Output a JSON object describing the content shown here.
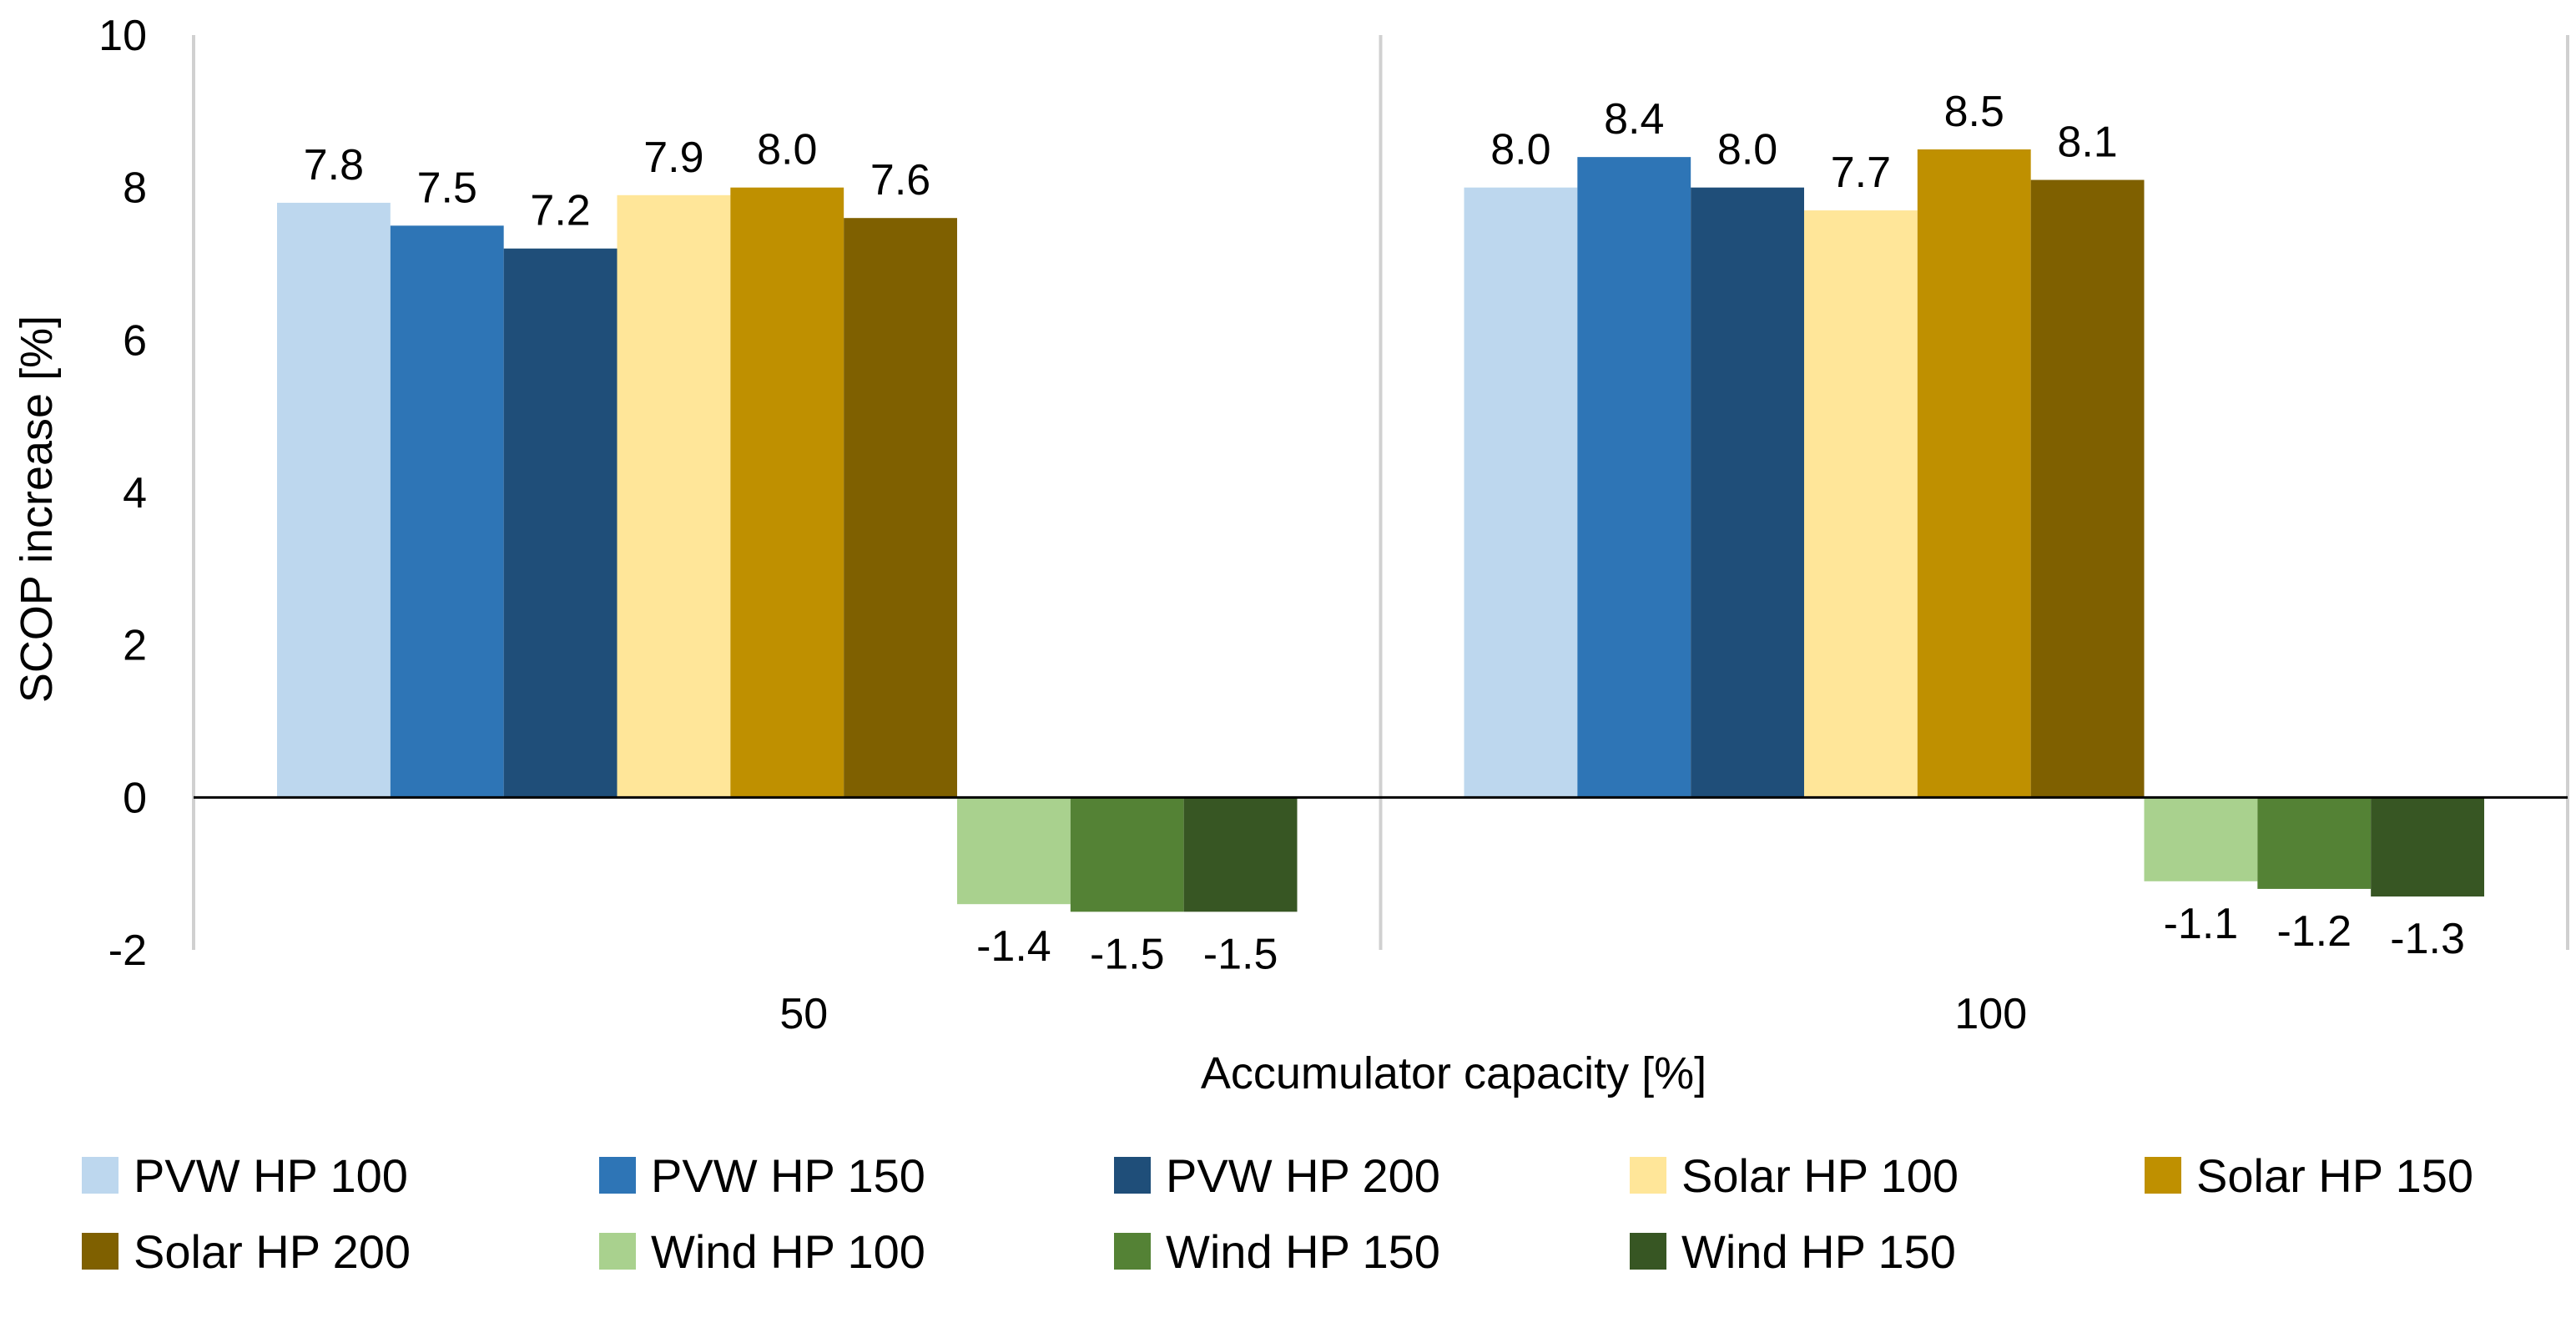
{
  "chart_data": {
    "type": "bar",
    "title": "",
    "xlabel": "Accumulator capacity [%]",
    "ylabel": "SCOP increase [%]",
    "ylim": [
      -2,
      10
    ],
    "yticks": [
      10,
      8,
      6,
      4,
      2,
      0,
      -2
    ],
    "ytick_labels": [
      "10",
      "8",
      "6",
      "4",
      "2",
      "0",
      "-2"
    ],
    "categories": [
      "50",
      "100"
    ],
    "grid": false,
    "legend_position": "bottom",
    "series": [
      {
        "name": "PVW HP 100",
        "color": "#BDD7EE",
        "values": [
          7.8,
          8.0
        ],
        "labels": [
          "7.8",
          "8.0"
        ]
      },
      {
        "name": "PVW HP 150",
        "color": "#2E75B6",
        "values": [
          7.5,
          8.4
        ],
        "labels": [
          "7.5",
          "8.4"
        ]
      },
      {
        "name": "PVW HP 200",
        "color": "#1F4E79",
        "values": [
          7.2,
          8.0
        ],
        "labels": [
          "7.2",
          "8.0"
        ]
      },
      {
        "name": "Solar HP 100",
        "color": "#FFE699",
        "values": [
          7.9,
          7.7
        ],
        "labels": [
          "7.9",
          "7.7"
        ]
      },
      {
        "name": "Solar HP 150",
        "color": "#BF9000",
        "values": [
          8.0,
          8.5
        ],
        "labels": [
          "8.0",
          "8.5"
        ]
      },
      {
        "name": "Solar HP 200",
        "color": "#7F6000",
        "values": [
          7.6,
          8.1
        ],
        "labels": [
          "7.6",
          "8.1"
        ]
      },
      {
        "name": "Wind HP 100",
        "color": "#A9D18E",
        "values": [
          -1.4,
          -1.1
        ],
        "labels": [
          "-1.4",
          "-1.1"
        ]
      },
      {
        "name": "Wind HP 150",
        "color": "#548235",
        "values": [
          -1.5,
          -1.2
        ],
        "labels": [
          "-1.5",
          "-1.2"
        ]
      },
      {
        "name": "Wind HP 150",
        "color": "#375623",
        "values": [
          -1.5,
          -1.3
        ],
        "labels": [
          "-1.5",
          "-1.3"
        ]
      }
    ]
  }
}
